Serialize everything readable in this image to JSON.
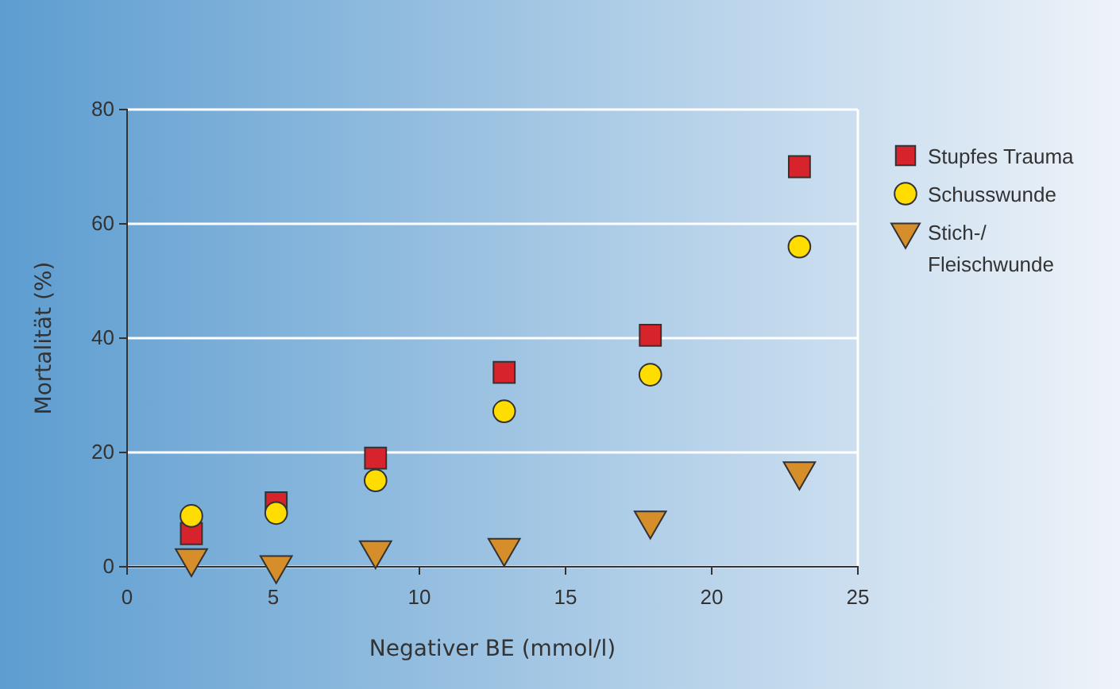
{
  "chart_data": {
    "type": "scatter",
    "xlabel": "Negativer BE (mmol/l)",
    "ylabel": "Mortalität (%)",
    "xlim": [
      0,
      25
    ],
    "xticks": [
      0,
      5,
      10,
      15,
      20,
      25
    ],
    "ylim": [
      0,
      80
    ],
    "yticks": [
      0,
      20,
      40,
      60,
      80
    ],
    "grid": "y",
    "legend": "right",
    "x": [
      2.2,
      5.1,
      8.5,
      12.9,
      17.9,
      23.0
    ],
    "series": [
      {
        "name": "Stupfes Trauma",
        "color": "#d7232b",
        "marker": "square",
        "values": [
          5.8,
          11.2,
          19,
          34,
          40.5,
          70
        ]
      },
      {
        "name": "Schusswunde",
        "color": "#ffdd00",
        "marker": "circle",
        "values": [
          8.9,
          9.4,
          15.1,
          27.2,
          33.6,
          56
        ]
      },
      {
        "name": "Stich-/ Fleischwunde",
        "color": "#d58e2a",
        "marker": "triangle",
        "values": [
          1.5,
          0.3,
          2.9,
          3.3,
          8.1,
          16.7
        ]
      }
    ]
  }
}
